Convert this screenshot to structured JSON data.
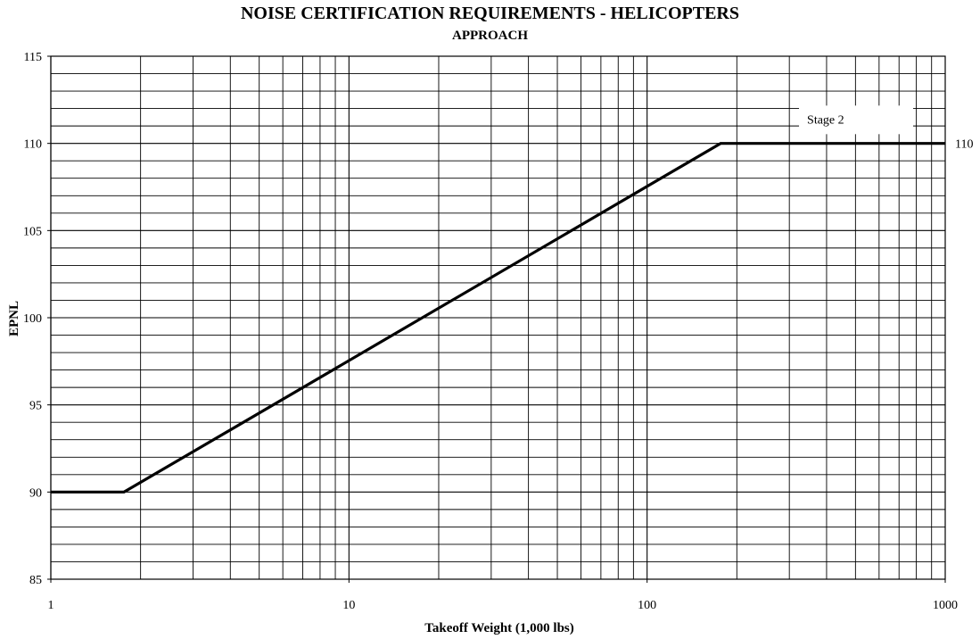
{
  "chart_data": {
    "type": "line",
    "title": "NOISE CERTIFICATION REQUIREMENTS - HELICOPTERS",
    "subtitle": "APPROACH",
    "xlabel": "Takeoff Weight (1,000 lbs)",
    "ylabel": "EPNL",
    "xscale": "log",
    "xlim": [
      1,
      1000
    ],
    "ylim": [
      85,
      115
    ],
    "x_ticks": [
      1,
      10,
      100,
      1000
    ],
    "x_tick_labels": [
      "1",
      "10",
      "100",
      "1000"
    ],
    "y_ticks": [
      85,
      90,
      95,
      100,
      105,
      110,
      115
    ],
    "y_tick_labels": [
      "85",
      "90",
      "95",
      "100",
      "105",
      "110",
      "115"
    ],
    "y_minor_step": 1,
    "grid": true,
    "series": [
      {
        "name": "Stage 2",
        "x": [
          1,
          1.76,
          176.4,
          1000
        ],
        "y": [
          90,
          90,
          110,
          110
        ]
      }
    ],
    "annotations": [
      {
        "text": "Stage 2",
        "x": 420,
        "y": 111.4
      },
      {
        "text": "110",
        "x": 1000,
        "y": 110,
        "position": "right"
      }
    ]
  }
}
